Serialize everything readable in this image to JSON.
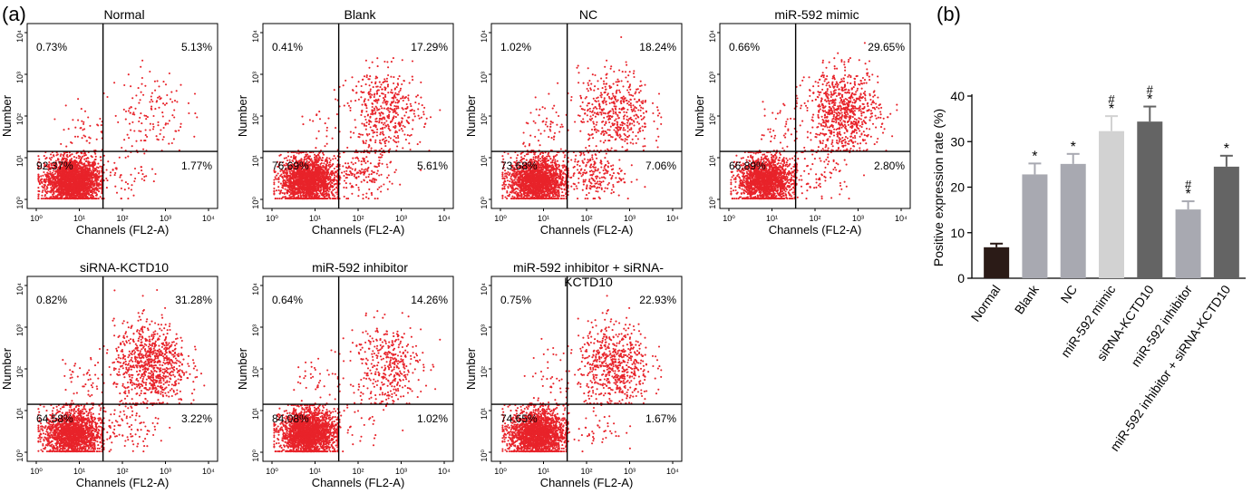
{
  "panel_labels": {
    "a": "(a)",
    "b": "(b)"
  },
  "chart_data": [
    {
      "type": "scatter",
      "title": "Normal",
      "xlabel": "Channels (FL2-A)",
      "ylabel": "Number",
      "x_ticks": [
        "10⁰",
        "10¹",
        "10²",
        "10³",
        "10⁴"
      ],
      "y_ticks": [
        "10⁰",
        "10¹",
        "10²",
        "10³",
        "10⁴"
      ],
      "quadrants": {
        "upper_left": "0.73%",
        "upper_right": "5.13%",
        "lower_left": "92.37%",
        "lower_right": "1.77%"
      }
    },
    {
      "type": "scatter",
      "title": "Blank",
      "xlabel": "Channels (FL2-A)",
      "ylabel": "Number",
      "x_ticks": [
        "10⁰",
        "10¹",
        "10²",
        "10³",
        "10⁴"
      ],
      "y_ticks": [
        "10⁰",
        "10¹",
        "10²",
        "10³",
        "10⁴"
      ],
      "quadrants": {
        "upper_left": "0.41%",
        "upper_right": "17.29%",
        "lower_left": "76.69%",
        "lower_right": "5.61%"
      }
    },
    {
      "type": "scatter",
      "title": "NC",
      "xlabel": "Channels (FL2-A)",
      "ylabel": "Number",
      "x_ticks": [
        "10⁰",
        "10¹",
        "10²",
        "10³",
        "10⁴"
      ],
      "y_ticks": [
        "10⁰",
        "10¹",
        "10²",
        "10³",
        "10⁴"
      ],
      "quadrants": {
        "upper_left": "1.02%",
        "upper_right": "18.24%",
        "lower_left": "73.68%",
        "lower_right": "7.06%"
      }
    },
    {
      "type": "scatter",
      "title": "miR-592 mimic",
      "xlabel": "Channels (FL2-A)",
      "ylabel": "Number",
      "x_ticks": [
        "10⁰",
        "10¹",
        "10²",
        "10³",
        "10⁴"
      ],
      "y_ticks": [
        "10⁰",
        "10¹",
        "10²",
        "10³",
        "10⁴"
      ],
      "quadrants": {
        "upper_left": "0.66%",
        "upper_right": "29.65%",
        "lower_left": "66.89%",
        "lower_right": "2.80%"
      }
    },
    {
      "type": "scatter",
      "title": "siRNA-KCTD10",
      "xlabel": "Channels (FL2-A)",
      "ylabel": "Number",
      "x_ticks": [
        "10⁰",
        "10¹",
        "10²",
        "10³",
        "10⁴"
      ],
      "y_ticks": [
        "10⁰",
        "10¹",
        "10²",
        "10³",
        "10⁴"
      ],
      "quadrants": {
        "upper_left": "0.82%",
        "upper_right": "31.28%",
        "lower_left": "64.58%",
        "lower_right": "3.22%"
      }
    },
    {
      "type": "scatter",
      "title": "miR-592 inhibitor",
      "xlabel": "Channels (FL2-A)",
      "ylabel": "Number",
      "x_ticks": [
        "10⁰",
        "10¹",
        "10²",
        "10³",
        "10⁴"
      ],
      "y_ticks": [
        "10⁰",
        "10¹",
        "10²",
        "10³",
        "10⁴"
      ],
      "quadrants": {
        "upper_left": "0.64%",
        "upper_right": "14.26%",
        "lower_left": "84.08%",
        "lower_right": "1.02%"
      }
    },
    {
      "type": "scatter",
      "title": "miR-592 inhibitor + siRNA-KCTD10",
      "xlabel": "Channels (FL2-A)",
      "ylabel": "Number",
      "x_ticks": [
        "10⁰",
        "10¹",
        "10²",
        "10³",
        "10⁴"
      ],
      "y_ticks": [
        "10⁰",
        "10¹",
        "10²",
        "10³",
        "10⁴"
      ],
      "quadrants": {
        "upper_left": "0.75%",
        "upper_right": "22.93%",
        "lower_left": "74.65%",
        "lower_right": "1.67%"
      }
    },
    {
      "type": "bar",
      "title": "",
      "xlabel": "",
      "ylabel": "Positive expression rate (%)",
      "ylim": [
        0,
        40
      ],
      "y_ticks": [
        0,
        10,
        20,
        30,
        40
      ],
      "categories": [
        "Normal",
        "Blank",
        "NC",
        "miR-592 mimic",
        "siRNA-KCTD10",
        "miR-592 inhibitor",
        "miR-592 inhibitor + siRNA-KCTD10"
      ],
      "values": [
        6.8,
        22.8,
        25.1,
        32.3,
        34.4,
        15.1,
        24.5
      ],
      "errors": [
        0.8,
        2.4,
        2.2,
        3.3,
        3.3,
        1.8,
        2.4
      ],
      "annotations": [
        "",
        "*",
        "*",
        "*#",
        "*#",
        "*#",
        "*"
      ],
      "colors": [
        "#2b1b17",
        "#a8a9b1",
        "#a8a9b1",
        "#d2d2d2",
        "#646464",
        "#a8a9b1",
        "#646464"
      ]
    }
  ]
}
